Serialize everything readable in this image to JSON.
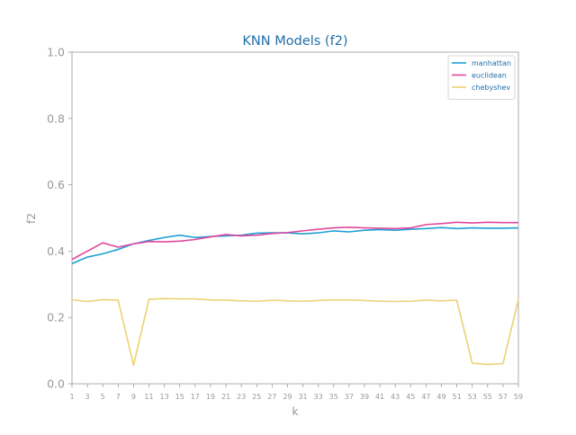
{
  "chart_data": {
    "type": "line",
    "title": "KNN Models (f2)",
    "xlabel": "k",
    "ylabel": "f2",
    "x": [
      1,
      3,
      5,
      7,
      9,
      11,
      13,
      15,
      17,
      19,
      21,
      23,
      25,
      27,
      29,
      31,
      33,
      35,
      37,
      39,
      41,
      43,
      45,
      47,
      49,
      51,
      53,
      55,
      57,
      59
    ],
    "xticks": [
      "1",
      "3",
      "5",
      "7",
      "9",
      "11",
      "13",
      "15",
      "17",
      "19",
      "21",
      "23",
      "25",
      "27",
      "29",
      "31",
      "33",
      "35",
      "37",
      "39",
      "41",
      "43",
      "45",
      "47",
      "49",
      "51",
      "53",
      "55",
      "57",
      "59"
    ],
    "yticks": [
      "0.0",
      "0.2",
      "0.4",
      "0.6",
      "0.8",
      "1.0"
    ],
    "xlim": [
      1,
      59
    ],
    "ylim": [
      0.0,
      1.0
    ],
    "grid": false,
    "legend_position": "top-right",
    "series": [
      {
        "name": "manhattan",
        "color": "#1f9fd4",
        "values": [
          0.362,
          0.382,
          0.392,
          0.405,
          0.422,
          0.432,
          0.441,
          0.448,
          0.441,
          0.444,
          0.446,
          0.448,
          0.454,
          0.455,
          0.455,
          0.452,
          0.455,
          0.461,
          0.458,
          0.463,
          0.465,
          0.463,
          0.466,
          0.468,
          0.471,
          0.468,
          0.47,
          0.469,
          0.469,
          0.47
        ]
      },
      {
        "name": "euclidean",
        "color": "#e0479e",
        "values": [
          0.375,
          0.4,
          0.425,
          0.412,
          0.422,
          0.429,
          0.428,
          0.43,
          0.435,
          0.443,
          0.45,
          0.446,
          0.448,
          0.453,
          0.456,
          0.461,
          0.466,
          0.47,
          0.472,
          0.47,
          0.469,
          0.468,
          0.47,
          0.48,
          0.483,
          0.487,
          0.485,
          0.487,
          0.486,
          0.486
        ]
      },
      {
        "name": "chebyshev",
        "color": "#ecd174",
        "values": [
          0.253,
          0.248,
          0.254,
          0.252,
          0.056,
          0.255,
          0.257,
          0.256,
          0.256,
          0.253,
          0.252,
          0.25,
          0.249,
          0.252,
          0.25,
          0.249,
          0.251,
          0.253,
          0.253,
          0.251,
          0.249,
          0.248,
          0.249,
          0.252,
          0.25,
          0.252,
          0.062,
          0.058,
          0.061,
          0.254
        ]
      }
    ],
    "colors": {
      "title": "#1f6fa8",
      "axis": "#999999",
      "tick_text": "#999999",
      "legend_text": "#1f6fa8"
    }
  }
}
